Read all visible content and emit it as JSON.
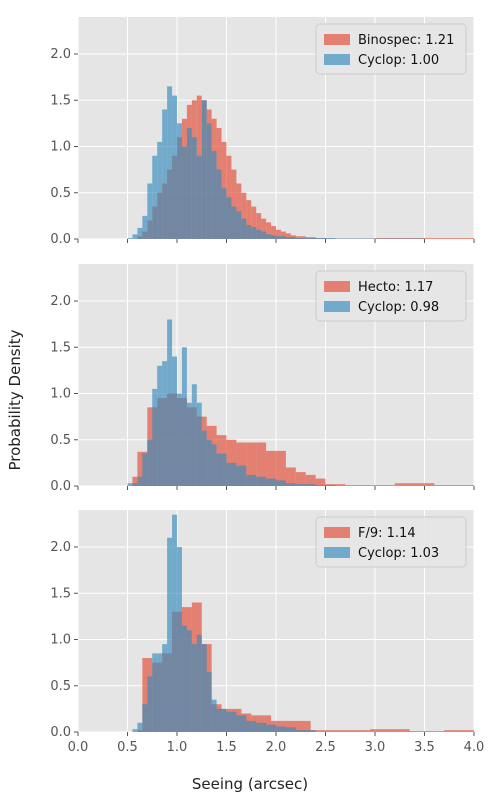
{
  "figure": {
    "xlabel": "Seeing (arcsec)",
    "ylabel": "Probability Density",
    "xlim": [
      0,
      4.0
    ],
    "ylim": [
      0,
      2.4
    ],
    "xticks": [
      "0.0",
      "0.5",
      "1.0",
      "1.5",
      "2.0",
      "2.5",
      "3.0",
      "3.5",
      "4.0"
    ],
    "yticks": [
      "0.0",
      "0.5",
      "1.0",
      "1.5",
      "2.0"
    ],
    "colors": {
      "instrument": "#E24A33",
      "cyclop": "#348ABD",
      "background": "#E5E5E5",
      "grid": "#FFFFFF"
    }
  },
  "chart_data": [
    {
      "type": "bar",
      "legend": [
        "Binospec: 1.21",
        "Cyclop: 1.00"
      ],
      "legend_position": "top-right",
      "series": [
        {
          "name": "Binospec: 1.21",
          "bin_edges": [
            0.6,
            0.65,
            0.7,
            0.75,
            0.8,
            0.85,
            0.9,
            0.95,
            1.0,
            1.05,
            1.1,
            1.15,
            1.2,
            1.25,
            1.3,
            1.35,
            1.4,
            1.45,
            1.5,
            1.55,
            1.6,
            1.65,
            1.7,
            1.75,
            1.8,
            1.85,
            1.9,
            1.95,
            2.0,
            2.05,
            2.1,
            2.15,
            2.2,
            2.3,
            2.4,
            2.5,
            2.7,
            3.0,
            3.5,
            4.0
          ],
          "values": [
            0.03,
            0.08,
            0.2,
            0.35,
            0.5,
            0.6,
            0.75,
            0.9,
            1.1,
            1.3,
            1.45,
            1.5,
            1.55,
            1.5,
            1.4,
            1.3,
            1.2,
            1.05,
            0.9,
            0.75,
            0.6,
            0.5,
            0.42,
            0.35,
            0.28,
            0.22,
            0.18,
            0.14,
            0.1,
            0.08,
            0.06,
            0.04,
            0.03,
            0.02,
            0.01,
            0.005,
            0.005,
            0.01,
            0.01
          ]
        },
        {
          "name": "Cyclop: 1.00",
          "bin_edges": [
            0.5,
            0.55,
            0.6,
            0.65,
            0.7,
            0.75,
            0.8,
            0.85,
            0.9,
            0.95,
            1.0,
            1.05,
            1.1,
            1.15,
            1.2,
            1.25,
            1.3,
            1.35,
            1.4,
            1.45,
            1.5,
            1.55,
            1.6,
            1.65,
            1.7,
            1.75,
            1.8,
            1.85,
            1.9,
            1.95,
            2.0,
            2.1,
            2.2,
            2.4,
            2.6,
            3.0,
            3.5
          ],
          "values": [
            0.01,
            0.05,
            0.12,
            0.25,
            0.6,
            0.9,
            1.05,
            1.4,
            1.65,
            1.55,
            1.25,
            1.0,
            1.2,
            1.1,
            0.9,
            1.5,
            1.25,
            0.95,
            0.75,
            0.55,
            0.45,
            0.35,
            0.3,
            0.22,
            0.15,
            0.13,
            0.1,
            0.08,
            0.05,
            0.04,
            0.03,
            0.02,
            0.01,
            0.01,
            0.005,
            0.005
          ]
        }
      ]
    },
    {
      "type": "bar",
      "legend": [
        "Hecto: 1.17",
        "Cyclop: 0.98"
      ],
      "legend_position": "top-right",
      "series": [
        {
          "name": "Hecto: 1.17",
          "bin_edges": [
            0.55,
            0.6,
            0.7,
            0.8,
            0.9,
            1.0,
            1.1,
            1.2,
            1.3,
            1.4,
            1.5,
            1.6,
            1.7,
            1.8,
            1.9,
            2.0,
            2.1,
            2.2,
            2.3,
            2.4,
            2.5,
            2.6,
            2.7,
            2.9,
            3.0,
            3.2,
            3.6,
            4.0
          ],
          "values": [
            0.1,
            0.37,
            0.85,
            0.95,
            1.0,
            0.95,
            0.85,
            0.75,
            0.65,
            0.55,
            0.5,
            0.47,
            0.47,
            0.47,
            0.38,
            0.38,
            0.2,
            0.15,
            0.12,
            0.08,
            0.02,
            0.02,
            0.01,
            0.01,
            0.01,
            0.03,
            0.01
          ]
        },
        {
          "name": "Cyclop: 0.98",
          "bin_edges": [
            0.5,
            0.6,
            0.65,
            0.7,
            0.75,
            0.8,
            0.85,
            0.9,
            0.95,
            1.0,
            1.05,
            1.1,
            1.15,
            1.2,
            1.25,
            1.3,
            1.35,
            1.4,
            1.5,
            1.6,
            1.7,
            1.8,
            1.9,
            2.0,
            2.1,
            2.2,
            2.4,
            2.6
          ],
          "values": [
            0.03,
            0.1,
            0.35,
            0.5,
            1.05,
            1.3,
            1.35,
            1.8,
            1.4,
            1.0,
            1.5,
            0.9,
            1.1,
            0.9,
            0.6,
            0.5,
            0.45,
            0.35,
            0.25,
            0.22,
            0.12,
            0.1,
            0.08,
            0.06,
            0.03,
            0.02,
            0.01
          ]
        }
      ]
    },
    {
      "type": "bar",
      "legend": [
        "F/9: 1.14",
        "Cyclop: 1.03"
      ],
      "legend_position": "top-right",
      "series": [
        {
          "name": "F/9: 1.14",
          "bin_edges": [
            0.6,
            0.65,
            0.75,
            0.85,
            0.95,
            1.05,
            1.15,
            1.25,
            1.35,
            1.45,
            1.55,
            1.65,
            1.75,
            1.95,
            2.35,
            2.65,
            2.95,
            3.35,
            3.7,
            4.0
          ],
          "values": [
            0.02,
            0.8,
            0.75,
            0.85,
            1.3,
            1.35,
            1.4,
            0.95,
            0.3,
            0.25,
            0.25,
            0.2,
            0.18,
            0.12,
            0.02,
            0.02,
            0.03,
            0.01,
            0.02
          ]
        },
        {
          "name": "Cyclop: 1.03",
          "bin_edges": [
            0.55,
            0.6,
            0.65,
            0.7,
            0.75,
            0.8,
            0.85,
            0.9,
            0.95,
            1.0,
            1.05,
            1.1,
            1.15,
            1.2,
            1.25,
            1.3,
            1.35,
            1.4,
            1.5,
            1.6,
            1.7,
            1.8,
            1.9,
            2.0,
            2.1,
            2.2,
            2.4
          ],
          "values": [
            0.03,
            0.1,
            0.3,
            0.6,
            0.85,
            0.85,
            0.95,
            2.1,
            2.35,
            2.0,
            1.15,
            1.1,
            0.95,
            1.05,
            0.95,
            0.65,
            0.35,
            0.25,
            0.22,
            0.18,
            0.12,
            0.1,
            0.08,
            0.06,
            0.05,
            0.02
          ]
        }
      ]
    }
  ]
}
